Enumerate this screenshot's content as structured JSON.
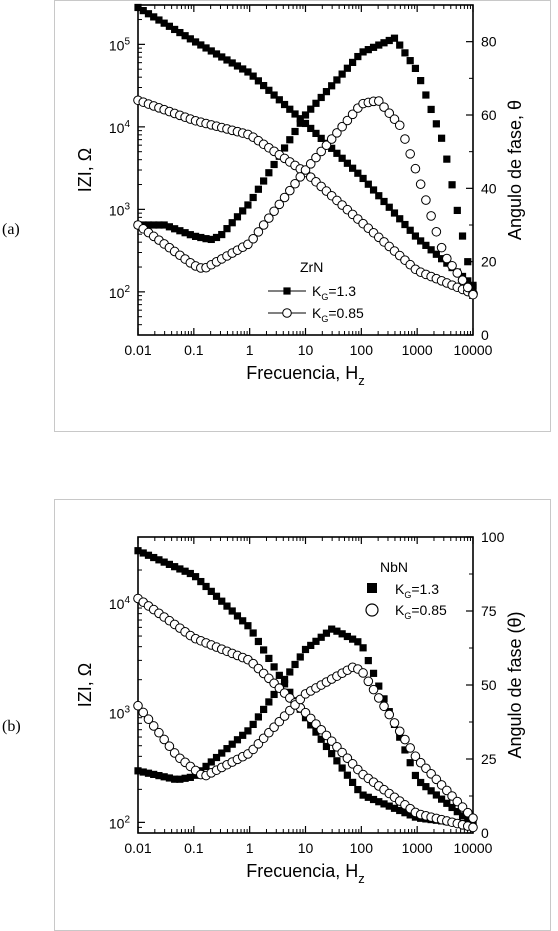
{
  "panels": [
    {
      "tag": "(a)"
    },
    {
      "tag": "(b)"
    }
  ],
  "chart_data": [
    {
      "type": "scatter",
      "panel": "(a)",
      "xlabel": "Frecuencia, H",
      "xlabel_sub": "z",
      "ylabel_left": "IZI, Ω",
      "ylabel_right": "Angulo de fase, θ",
      "x_scale": "log",
      "y_left_scale": "log",
      "xlim": [
        0.01,
        10000
      ],
      "ylim_left": [
        30,
        300000
      ],
      "ylim_right": [
        0,
        90
      ],
      "x_ticks": [
        "0.01",
        "0.1",
        "1",
        "10",
        "100",
        "1000",
        "10000"
      ],
      "y_left_ticks": [
        "10^2",
        "10^3",
        "10^4",
        "10^5"
      ],
      "y_right_ticks": [
        "0",
        "20",
        "40",
        "60",
        "80"
      ],
      "legend": {
        "title": "ZrN",
        "position": "center-bottom"
      },
      "series": [
        {
          "name": "K_G=1.3",
          "axis": "left",
          "marker": "filled-square",
          "x": [
            0.01,
            0.1,
            1,
            10,
            100,
            1000,
            10000
          ],
          "y": [
            280000,
            110000,
            45000,
            11000,
            2500,
            450,
            120
          ]
        },
        {
          "name": "K_G=1.3",
          "axis": "right",
          "marker": "filled-square",
          "x": [
            0.01,
            0.03,
            0.1,
            0.2,
            0.3,
            1,
            10,
            100,
            400,
            1000,
            3000,
            10000
          ],
          "y": [
            30,
            30,
            27,
            26,
            27,
            36,
            60,
            77,
            81,
            72,
            52,
            13
          ]
        },
        {
          "name": "K_G=0.85",
          "axis": "left",
          "marker": "open-circle",
          "x": [
            0.01,
            0.1,
            1,
            10,
            100,
            1000,
            10000
          ],
          "y": [
            21000,
            12000,
            8000,
            2800,
            700,
            180,
            95
          ]
        },
        {
          "name": "K_G=0.85",
          "axis": "right",
          "marker": "open-circle",
          "x": [
            0.01,
            0.1,
            0.15,
            1,
            10,
            100,
            200,
            500,
            1000,
            3000,
            10000
          ],
          "y": [
            30,
            19,
            18,
            25,
            45,
            63,
            64,
            57,
            44,
            22,
            11
          ]
        }
      ]
    },
    {
      "type": "scatter",
      "panel": "(b)",
      "xlabel": "Frecuencia, H",
      "xlabel_sub": "z",
      "ylabel_left": "IZI, Ω",
      "ylabel_right": "Angulo de fase (θ)",
      "x_scale": "log",
      "y_left_scale": "log",
      "xlim": [
        0.01,
        10000
      ],
      "ylim_left": [
        80,
        40000
      ],
      "ylim_right": [
        0,
        100
      ],
      "x_ticks": [
        "0.01",
        "0.1",
        "1",
        "10",
        "100",
        "1000",
        "10000"
      ],
      "y_left_ticks": [
        "10^2",
        "10^3",
        "10^4"
      ],
      "y_right_ticks": [
        "0",
        "25",
        "50",
        "75",
        "100"
      ],
      "legend": {
        "title": "NbN",
        "position": "top-right"
      },
      "series": [
        {
          "name": "K_G=1.3",
          "axis": "left",
          "marker": "filled-square",
          "x": [
            0.01,
            0.1,
            1,
            10,
            100,
            1000,
            10000
          ],
          "y": [
            30000,
            18000,
            6000,
            900,
            180,
            110,
            95
          ]
        },
        {
          "name": "K_G=1.3",
          "axis": "right",
          "marker": "filled-square",
          "x": [
            0.01,
            0.05,
            0.1,
            1,
            10,
            30,
            100,
            1000,
            10000
          ],
          "y": [
            21,
            18,
            19,
            35,
            62,
            69,
            64,
            18,
            3
          ]
        },
        {
          "name": "K_G=0.85",
          "axis": "left",
          "marker": "open-circle",
          "x": [
            0.01,
            0.1,
            1,
            10,
            100,
            1000,
            10000
          ],
          "y": [
            11000,
            4800,
            3000,
            1000,
            280,
            120,
            90
          ]
        },
        {
          "name": "K_G=0.85",
          "axis": "right",
          "marker": "open-circle",
          "x": [
            0.01,
            0.05,
            0.15,
            1,
            10,
            70,
            100,
            1000,
            10000
          ],
          "y": [
            43,
            26,
            19,
            27,
            47,
            56,
            55,
            25,
            5
          ]
        }
      ]
    }
  ]
}
